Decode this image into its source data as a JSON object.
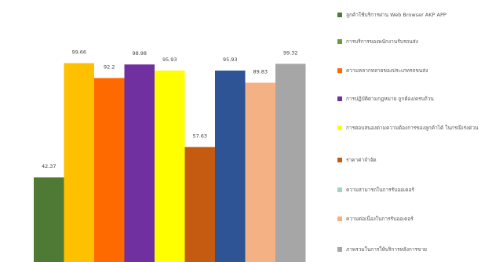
{
  "chart_data": {
    "type": "bar",
    "values": [
      42.37,
      99.66,
      92.2,
      98.98,
      95.93,
      57.63,
      95.93,
      89.83,
      99.32
    ],
    "value_labels": [
      "42.37",
      "99.66",
      "92.2",
      "98.98",
      "95.93",
      "57.63",
      "95.93",
      "89.83",
      "99.32"
    ],
    "ylim": [
      0,
      110
    ],
    "grid": false,
    "legend_placement": "right",
    "series": [
      {
        "name": "ลูกค้าใช้บริการผ่าน  Web Browser AKP APP",
        "color": "#4e7a35"
      },
      {
        "name": "การบริการของพนักงานรับรถนส่ง",
        "color": "#ffc000"
      },
      {
        "name": "ความหลากหลายของประเภทรถขนส่ง",
        "color": "#ff6a00"
      },
      {
        "name": "การปฏิบัติตามกฎหมาย ถูกต้อง/ครบถ้วน",
        "color": "#7030a0"
      },
      {
        "name": "การตอบสนองตามความต้องการของลูกค้าได้ ในกรณีเร่งด่วน",
        "color": "#ffff00"
      },
      {
        "name": "ราคาค่าจำจัด",
        "color": "#c55a11"
      },
      {
        "name": "ความสามารถในการรับออเดอร์",
        "color": "#2f5496"
      },
      {
        "name": "ความต่อเนื่องในการรับออเดอร์",
        "color": "#f4b183"
      },
      {
        "name": "ภาพรวมในการให้บริการหลังการขาย",
        "color": "#a6a6a6"
      }
    ],
    "legend_swatch_colors": [
      "#4e7a35",
      "#6a9a3a",
      "#ff6a00",
      "#7030a0",
      "#ffff00",
      "#c55a11",
      "#9fd5c4",
      "#f4b183",
      "#a6a6a6"
    ]
  }
}
